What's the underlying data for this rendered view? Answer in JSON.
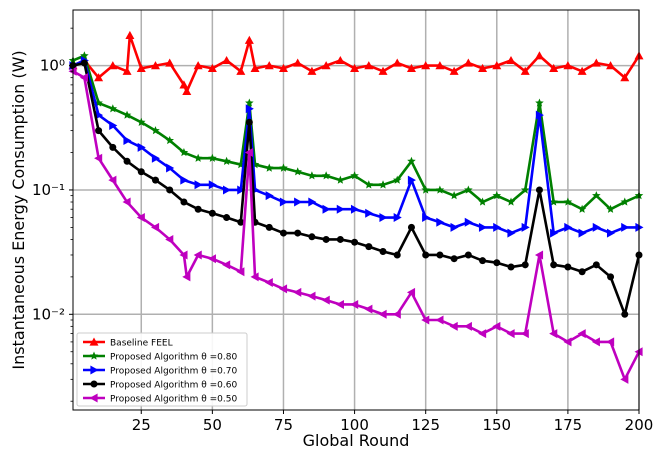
{
  "chart_data": {
    "type": "line",
    "title": "",
    "xlabel": "Global Round",
    "ylabel": "Instantaneous Energy Consumption (W)",
    "xlim": [
      1,
      200
    ],
    "ylim": [
      0.0017,
      2.8
    ],
    "yscale": "log",
    "grid": true,
    "legend_position": "bottom-left",
    "x_ticks": [
      25,
      50,
      75,
      100,
      125,
      150,
      175,
      200
    ],
    "x_tick_labels": [
      "25",
      "50",
      "75",
      "100",
      "125",
      "150",
      "175",
      "200"
    ],
    "y_ticks": [
      1,
      0.1,
      0.01
    ],
    "y_tick_labels": [
      "10⁰",
      "10⁻¹",
      "10⁻²"
    ],
    "series": [
      {
        "name": "Baseline FEEL",
        "color": "#ff0000",
        "marker": "triangle-up",
        "points": [
          [
            1,
            1.0
          ],
          [
            5,
            1.1
          ],
          [
            10,
            0.8
          ],
          [
            15,
            1.0
          ],
          [
            20,
            0.9
          ],
          [
            21,
            1.75
          ],
          [
            25,
            0.95
          ],
          [
            30,
            1.0
          ],
          [
            35,
            1.05
          ],
          [
            40,
            0.7
          ],
          [
            41,
            0.62
          ],
          [
            45,
            1.0
          ],
          [
            50,
            0.95
          ],
          [
            55,
            1.1
          ],
          [
            60,
            0.9
          ],
          [
            63,
            1.6
          ],
          [
            65,
            0.95
          ],
          [
            70,
            1.0
          ],
          [
            75,
            0.95
          ],
          [
            80,
            1.05
          ],
          [
            85,
            0.9
          ],
          [
            90,
            1.0
          ],
          [
            95,
            1.1
          ],
          [
            100,
            0.95
          ],
          [
            105,
            1.0
          ],
          [
            110,
            0.9
          ],
          [
            115,
            1.05
          ],
          [
            120,
            0.95
          ],
          [
            125,
            1.0
          ],
          [
            130,
            1.0
          ],
          [
            135,
            0.9
          ],
          [
            140,
            1.05
          ],
          [
            145,
            0.95
          ],
          [
            150,
            1.0
          ],
          [
            155,
            1.1
          ],
          [
            160,
            0.9
          ],
          [
            165,
            1.2
          ],
          [
            170,
            0.95
          ],
          [
            175,
            1.0
          ],
          [
            180,
            0.9
          ],
          [
            185,
            1.05
          ],
          [
            190,
            1.0
          ],
          [
            195,
            0.8
          ],
          [
            200,
            1.2
          ]
        ]
      },
      {
        "name": "Proposed Algorithm θ =0.80",
        "color": "#008000",
        "marker": "star",
        "points": [
          [
            1,
            1.1
          ],
          [
            5,
            1.2
          ],
          [
            10,
            0.5
          ],
          [
            15,
            0.45
          ],
          [
            20,
            0.4
          ],
          [
            25,
            0.35
          ],
          [
            30,
            0.3
          ],
          [
            35,
            0.25
          ],
          [
            40,
            0.2
          ],
          [
            45,
            0.18
          ],
          [
            50,
            0.18
          ],
          [
            55,
            0.17
          ],
          [
            60,
            0.16
          ],
          [
            63,
            0.5
          ],
          [
            65,
            0.16
          ],
          [
            70,
            0.15
          ],
          [
            75,
            0.15
          ],
          [
            80,
            0.14
          ],
          [
            85,
            0.13
          ],
          [
            90,
            0.13
          ],
          [
            95,
            0.12
          ],
          [
            100,
            0.13
          ],
          [
            105,
            0.11
          ],
          [
            110,
            0.11
          ],
          [
            115,
            0.12
          ],
          [
            120,
            0.17
          ],
          [
            125,
            0.1
          ],
          [
            130,
            0.1
          ],
          [
            135,
            0.09
          ],
          [
            140,
            0.1
          ],
          [
            145,
            0.08
          ],
          [
            150,
            0.09
          ],
          [
            155,
            0.08
          ],
          [
            160,
            0.1
          ],
          [
            165,
            0.5
          ],
          [
            170,
            0.08
          ],
          [
            175,
            0.08
          ],
          [
            180,
            0.07
          ],
          [
            185,
            0.09
          ],
          [
            190,
            0.07
          ],
          [
            195,
            0.08
          ],
          [
            200,
            0.09
          ]
        ]
      },
      {
        "name": "Proposed Algorithm θ =0.70",
        "color": "#0000ff",
        "marker": "triangle-right",
        "points": [
          [
            1,
            1.0
          ],
          [
            5,
            1.1
          ],
          [
            10,
            0.4
          ],
          [
            15,
            0.33
          ],
          [
            20,
            0.25
          ],
          [
            25,
            0.22
          ],
          [
            30,
            0.18
          ],
          [
            35,
            0.15
          ],
          [
            40,
            0.12
          ],
          [
            45,
            0.11
          ],
          [
            50,
            0.11
          ],
          [
            55,
            0.1
          ],
          [
            60,
            0.1
          ],
          [
            63,
            0.45
          ],
          [
            65,
            0.1
          ],
          [
            70,
            0.09
          ],
          [
            75,
            0.08
          ],
          [
            80,
            0.08
          ],
          [
            85,
            0.08
          ],
          [
            90,
            0.07
          ],
          [
            95,
            0.07
          ],
          [
            100,
            0.07
          ],
          [
            105,
            0.065
          ],
          [
            110,
            0.06
          ],
          [
            115,
            0.06
          ],
          [
            120,
            0.12
          ],
          [
            125,
            0.06
          ],
          [
            130,
            0.055
          ],
          [
            135,
            0.05
          ],
          [
            140,
            0.055
          ],
          [
            145,
            0.05
          ],
          [
            150,
            0.05
          ],
          [
            155,
            0.045
          ],
          [
            160,
            0.05
          ],
          [
            165,
            0.4
          ],
          [
            170,
            0.045
          ],
          [
            175,
            0.05
          ],
          [
            180,
            0.045
          ],
          [
            185,
            0.05
          ],
          [
            190,
            0.045
          ],
          [
            195,
            0.05
          ],
          [
            200,
            0.05
          ]
        ]
      },
      {
        "name": "Proposed Algorithm θ =0.60",
        "color": "#000000",
        "marker": "circle",
        "points": [
          [
            1,
            1.0
          ],
          [
            5,
            1.05
          ],
          [
            10,
            0.3
          ],
          [
            15,
            0.22
          ],
          [
            20,
            0.17
          ],
          [
            25,
            0.14
          ],
          [
            30,
            0.12
          ],
          [
            35,
            0.1
          ],
          [
            40,
            0.08
          ],
          [
            45,
            0.07
          ],
          [
            50,
            0.065
          ],
          [
            55,
            0.06
          ],
          [
            60,
            0.055
          ],
          [
            63,
            0.35
          ],
          [
            65,
            0.055
          ],
          [
            70,
            0.05
          ],
          [
            75,
            0.045
          ],
          [
            80,
            0.045
          ],
          [
            85,
            0.042
          ],
          [
            90,
            0.04
          ],
          [
            95,
            0.04
          ],
          [
            100,
            0.038
          ],
          [
            105,
            0.035
          ],
          [
            110,
            0.032
          ],
          [
            115,
            0.03
          ],
          [
            120,
            0.05
          ],
          [
            125,
            0.03
          ],
          [
            130,
            0.03
          ],
          [
            135,
            0.028
          ],
          [
            140,
            0.03
          ],
          [
            145,
            0.027
          ],
          [
            150,
            0.026
          ],
          [
            155,
            0.024
          ],
          [
            160,
            0.025
          ],
          [
            165,
            0.1
          ],
          [
            170,
            0.025
          ],
          [
            175,
            0.024
          ],
          [
            180,
            0.022
          ],
          [
            185,
            0.025
          ],
          [
            190,
            0.02
          ],
          [
            195,
            0.01
          ],
          [
            200,
            0.03
          ]
        ]
      },
      {
        "name": "Proposed Algorithm θ =0.50",
        "color": "#bf00bf",
        "marker": "triangle-left",
        "points": [
          [
            1,
            0.9
          ],
          [
            5,
            0.8
          ],
          [
            10,
            0.18
          ],
          [
            15,
            0.12
          ],
          [
            20,
            0.08
          ],
          [
            25,
            0.06
          ],
          [
            30,
            0.05
          ],
          [
            35,
            0.04
          ],
          [
            40,
            0.03
          ],
          [
            41,
            0.02
          ],
          [
            45,
            0.03
          ],
          [
            50,
            0.028
          ],
          [
            55,
            0.025
          ],
          [
            60,
            0.022
          ],
          [
            63,
            0.2
          ],
          [
            65,
            0.02
          ],
          [
            70,
            0.018
          ],
          [
            75,
            0.016
          ],
          [
            80,
            0.015
          ],
          [
            85,
            0.014
          ],
          [
            90,
            0.013
          ],
          [
            95,
            0.012
          ],
          [
            100,
            0.012
          ],
          [
            105,
            0.011
          ],
          [
            110,
            0.01
          ],
          [
            115,
            0.01
          ],
          [
            120,
            0.015
          ],
          [
            125,
            0.009
          ],
          [
            130,
            0.009
          ],
          [
            135,
            0.008
          ],
          [
            140,
            0.008
          ],
          [
            145,
            0.007
          ],
          [
            150,
            0.008
          ],
          [
            155,
            0.007
          ],
          [
            160,
            0.007
          ],
          [
            165,
            0.03
          ],
          [
            170,
            0.007
          ],
          [
            175,
            0.006
          ],
          [
            180,
            0.007
          ],
          [
            185,
            0.006
          ],
          [
            190,
            0.006
          ],
          [
            195,
            0.003
          ],
          [
            200,
            0.005
          ]
        ]
      }
    ]
  }
}
